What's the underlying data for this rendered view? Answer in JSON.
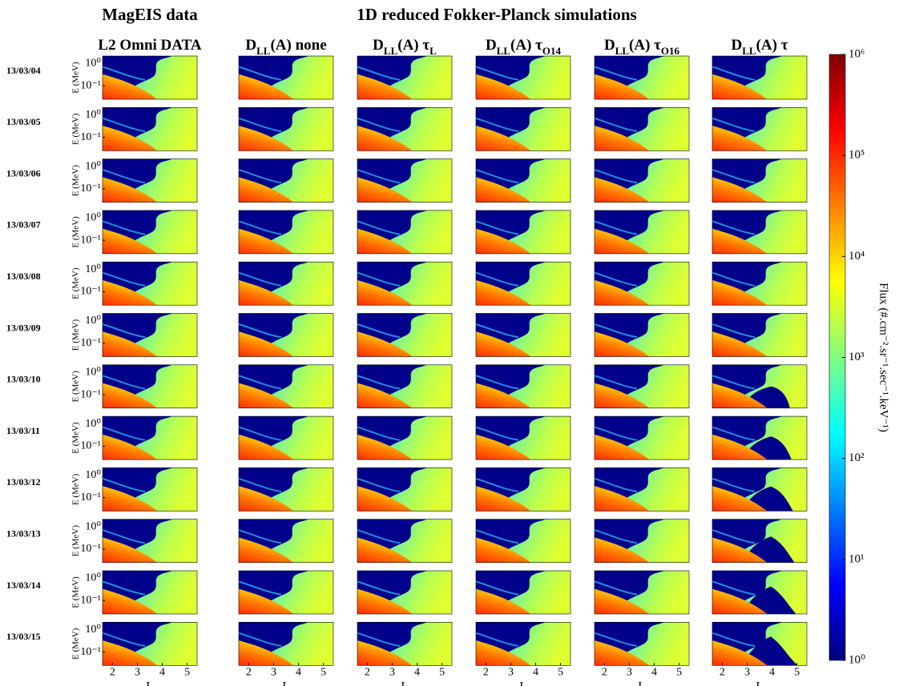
{
  "chart_data": {
    "type": "heatmap-grid",
    "group_titles": [
      "MagEIS data",
      "1D reduced Fokker-Planck simulations"
    ],
    "columns": [
      [
        "L2 Omni DATA"
      ],
      [
        "D",
        "LL",
        "(A) none"
      ],
      [
        "D",
        "LL",
        "(A) τ",
        "L"
      ],
      [
        "D",
        "LL",
        "(A) τ",
        "O14"
      ],
      [
        "D",
        "LL",
        "(A) τ",
        "O16"
      ],
      [
        "D",
        "LL",
        "(A) τ"
      ]
    ],
    "rows": [
      "13/03/04",
      "13/03/05",
      "13/03/06",
      "13/03/07",
      "13/03/08",
      "13/03/09",
      "13/03/10",
      "13/03/11",
      "13/03/12",
      "13/03/13",
      "13/03/14",
      "13/03/15"
    ],
    "xlabel": "L",
    "ylabel": "E (MeV)",
    "xlim": [
      1.6,
      5.4
    ],
    "xticks": [
      2,
      3,
      4,
      5
    ],
    "ylog": true,
    "ylim": [
      0.025,
      2.2
    ],
    "yticks": [
      {
        "value": 1,
        "label": "10⁰"
      },
      {
        "value": 0.1,
        "label": "10⁻¹"
      }
    ],
    "colorbar": {
      "label": "Flux (#.cm⁻².sr⁻¹.sec⁻¹.keV⁻¹)",
      "log": true,
      "lim": [
        1,
        1000000
      ],
      "ticks": [
        {
          "value": 1,
          "label": "10⁰"
        },
        {
          "value": 10,
          "label": "10¹"
        },
        {
          "value": 100,
          "label": "10²"
        },
        {
          "value": 1000,
          "label": "10³"
        },
        {
          "value": 10000,
          "label": "10⁴"
        },
        {
          "value": 100000,
          "label": "10⁵"
        },
        {
          "value": 1000000,
          "label": "10⁶"
        }
      ]
    }
  }
}
